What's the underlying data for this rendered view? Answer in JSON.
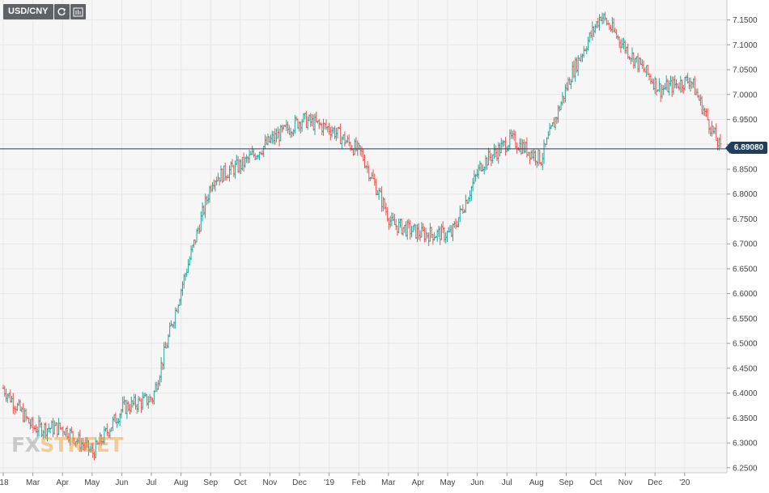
{
  "toolbar": {
    "symbol": "USD/CNY",
    "refresh_icon": "refresh-icon",
    "indicators_icon": "indicators-icon"
  },
  "current_price": "6.89080",
  "watermark": {
    "part_a": "FX",
    "part_b": "STREET"
  },
  "colors": {
    "up": "#26a69a",
    "down": "#ef5350",
    "price_line": "#1f3f5f",
    "grid": "#e6e6e6",
    "bg": "#f6f6f6"
  },
  "chart_data": {
    "type": "candlestick",
    "title": "",
    "grid": true,
    "ylim": [
      6.24,
      7.19
    ],
    "y_ticks": [
      "7.1500",
      "7.1000",
      "7.0500",
      "7.0000",
      "6.9500",
      "6.9000",
      "6.8500",
      "6.8000",
      "6.7500",
      "6.7000",
      "6.6500",
      "6.6000",
      "6.5500",
      "6.5000",
      "6.4500",
      "6.4000",
      "6.3500",
      "6.3000",
      "6.2500"
    ],
    "x_ticks": [
      "'18",
      "Mar",
      "Apr",
      "May",
      "Jun",
      "Jul",
      "Aug",
      "Sep",
      "Oct",
      "Nov",
      "Dec",
      "'19",
      "Feb",
      "Mar",
      "Apr",
      "May",
      "Jun",
      "Jul",
      "Aug",
      "Sep",
      "Oct",
      "Nov",
      "Dec",
      "'20"
    ],
    "current_value": 6.8908,
    "series": [
      {
        "dates": [
          "2018-01",
          "2018-02",
          "2018-03",
          "2018-04",
          "2018-05",
          "2018-06",
          "2018-07",
          "2018-08",
          "2018-09",
          "2018-10",
          "2018-11",
          "2018-12",
          "2019-01",
          "2019-02",
          "2019-03",
          "2019-04",
          "2019-05",
          "2019-06",
          "2019-07",
          "2019-08",
          "2019-09",
          "2019-10",
          "2019-11",
          "2019-12",
          "2020-01"
        ],
        "values": [
          6.41,
          6.33,
          6.33,
          6.28,
          6.37,
          6.39,
          6.62,
          6.83,
          6.86,
          6.91,
          6.95,
          6.93,
          6.88,
          6.74,
          6.72,
          6.72,
          6.86,
          6.91,
          6.87,
          7.04,
          7.16,
          7.08,
          7.01,
          7.03,
          6.89
        ]
      }
    ]
  }
}
